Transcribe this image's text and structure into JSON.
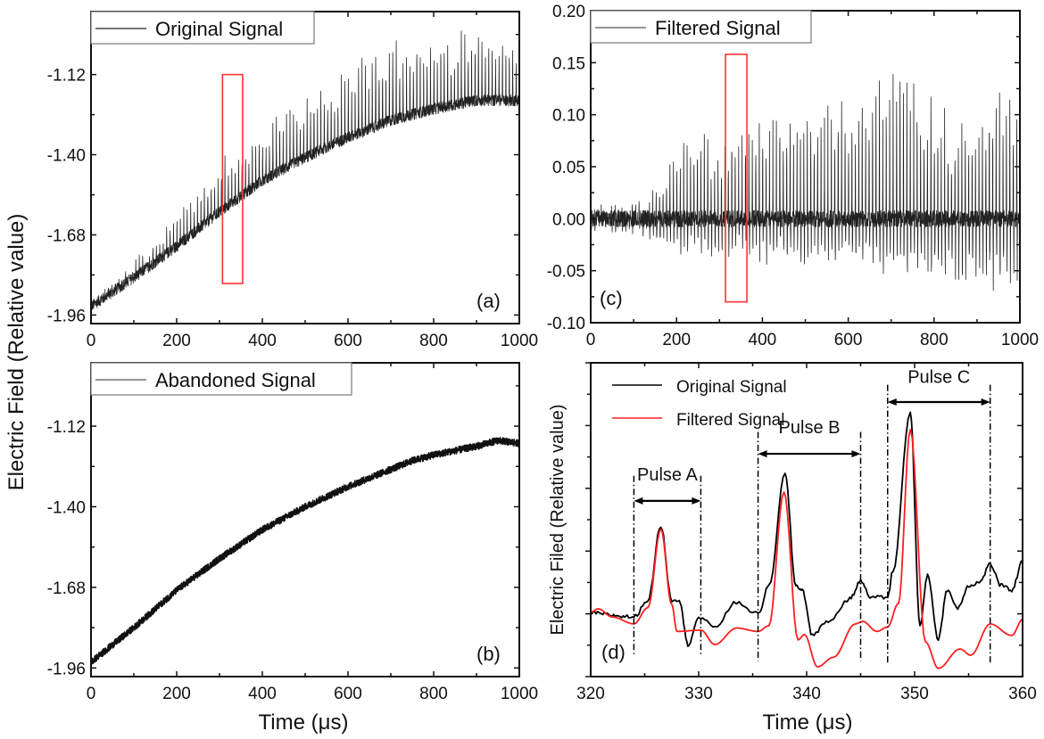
{
  "figure": {
    "shared_ylabel": "Electric Field (Relative value)",
    "bottom_xlabel_left": "Time (μs)",
    "bottom_xlabel_right": "Time (μs)"
  },
  "chart_data": [
    {
      "id": "a",
      "type": "line",
      "panel_tag": "(a)",
      "title": "",
      "xlabel": "",
      "ylabel": "Electric Field (Relative value)",
      "xlim": [
        0,
        1000
      ],
      "ylim": [
        -1.99,
        -0.9
      ],
      "xticks": [
        0,
        200,
        400,
        600,
        800,
        1000
      ],
      "xtick_labels": [
        "0",
        "200",
        "400",
        "600",
        "800",
        "1000"
      ],
      "yticks": [
        -1.96,
        -1.68,
        -1.4,
        -1.12
      ],
      "ytick_labels": [
        "-1.96",
        "-1.68",
        "-1.40",
        "-1.12"
      ],
      "legend": {
        "position": "top-left",
        "boxed": true,
        "entries": [
          {
            "label": "Original Signal",
            "color": "#222222"
          }
        ]
      },
      "series": [
        {
          "name": "Original Signal",
          "color": "#222222",
          "trend": {
            "x": [
              0,
              100,
              200,
              300,
              400,
              500,
              600,
              700,
              800,
              900,
              1000
            ],
            "y": [
              -1.93,
              -1.83,
              -1.72,
              -1.6,
              -1.49,
              -1.41,
              -1.34,
              -1.28,
              -1.24,
              -1.21,
              -1.21
            ]
          },
          "spike_height": {
            "x": [
              0,
              100,
              200,
              300,
              350,
              400,
              600,
              700,
              800,
              900,
              1000
            ],
            "y": [
              0.0,
              0.05,
              0.12,
              0.18,
              0.2,
              0.22,
              0.25,
              0.32,
              0.25,
              0.27,
              0.22
            ]
          },
          "spike_period_us": 8.0,
          "noise": 0.02
        }
      ],
      "annotations": [
        {
          "type": "rect",
          "color": "#ff3333",
          "x": [
            307,
            354
          ],
          "y": [
            -1.85,
            -1.12
          ]
        }
      ]
    },
    {
      "id": "b",
      "type": "line",
      "panel_tag": "(b)",
      "xlabel": "Time (μs)",
      "xlim": [
        0,
        1000
      ],
      "ylim": [
        -1.99,
        -0.9
      ],
      "xticks": [
        0,
        200,
        400,
        600,
        800,
        1000
      ],
      "xtick_labels": [
        "0",
        "200",
        "400",
        "600",
        "800",
        "1000"
      ],
      "yticks": [
        -1.96,
        -1.68,
        -1.4,
        -1.12
      ],
      "ytick_labels": [
        "-1.96",
        "-1.68",
        "-1.40",
        "-1.12"
      ],
      "legend": {
        "position": "top-left",
        "boxed": true,
        "entries": [
          {
            "label": "Abandoned Signal",
            "color": "#555555"
          }
        ]
      },
      "series": [
        {
          "name": "Abandoned Signal",
          "color": "#111111",
          "trend": {
            "x": [
              0,
              100,
              200,
              300,
              400,
              500,
              600,
              700,
              750,
              800,
              900,
              950,
              1000
            ],
            "y": [
              -1.94,
              -1.82,
              -1.69,
              -1.58,
              -1.48,
              -1.4,
              -1.33,
              -1.27,
              -1.24,
              -1.22,
              -1.19,
              -1.17,
              -1.18
            ]
          },
          "noise": 0.012
        }
      ]
    },
    {
      "id": "c",
      "type": "line",
      "panel_tag": "(c)",
      "xlabel": "",
      "xlim": [
        0,
        1000
      ],
      "ylim": [
        -0.1,
        0.2
      ],
      "xticks": [
        0,
        200,
        400,
        600,
        800,
        1000
      ],
      "xtick_labels": [
        "0",
        "200",
        "400",
        "600",
        "800",
        "1000"
      ],
      "yticks": [
        -0.1,
        -0.05,
        0.0,
        0.05,
        0.1,
        0.15,
        0.2
      ],
      "ytick_labels": [
        "-0.10",
        "-0.05",
        "0.00",
        "0.05",
        "0.10",
        "0.15",
        "0.20"
      ],
      "legend": {
        "position": "top-left",
        "boxed": true,
        "entries": [
          {
            "label": "Filtered Signal",
            "color": "#555555"
          }
        ]
      },
      "series": [
        {
          "name": "Filtered Signal",
          "color": "#222222",
          "spike_height": {
            "x": [
              0,
              100,
              150,
              200,
              260,
              300,
              350,
              400,
              500,
              600,
              700,
              720,
              800,
              900,
              950,
              1000
            ],
            "y": [
              0.005,
              0.015,
              0.03,
              0.08,
              0.1,
              0.07,
              0.1,
              0.11,
              0.12,
              0.12,
              0.15,
              0.19,
              0.12,
              0.09,
              0.15,
              0.14
            ]
          },
          "dip_depth": {
            "x": [
              0,
              100,
              200,
              400,
              600,
              800,
              950,
              1000
            ],
            "y": [
              -0.005,
              -0.01,
              -0.03,
              -0.035,
              -0.04,
              -0.05,
              -0.07,
              -0.06
            ]
          },
          "spike_period_us": 8.0,
          "noise": 0.008
        }
      ],
      "annotations": [
        {
          "type": "rect",
          "color": "#ff3333",
          "x": [
            314,
            364
          ],
          "y": [
            -0.08,
            0.158
          ]
        }
      ]
    },
    {
      "id": "d",
      "type": "line",
      "panel_tag": "(d)",
      "xlabel": "Time (μs)",
      "ylabel": "Electric Filed (Relative value)",
      "xlim": [
        320,
        360
      ],
      "ylim": [
        0,
        10
      ],
      "xticks": [
        320,
        330,
        340,
        350,
        360
      ],
      "xtick_labels": [
        "320",
        "330",
        "340",
        "350",
        "360"
      ],
      "yticks_unlabeled": [
        0,
        1,
        2,
        3,
        4,
        5,
        6,
        7,
        8,
        9,
        10
      ],
      "legend": {
        "position": "top-left",
        "boxed": false,
        "entries": [
          {
            "label": "Original Signal",
            "color": "#000000"
          },
          {
            "label": "Filtered Signal",
            "color": "#ff2020"
          }
        ]
      },
      "series": [
        {
          "name": "Original Signal",
          "color": "#000000",
          "x": [
            320,
            321,
            322,
            323,
            324,
            325.3,
            326.5,
            327.5,
            328.2,
            329,
            330,
            331.5,
            333.5,
            335.5,
            336.5,
            338,
            339,
            339.6,
            340.5,
            342,
            344,
            345,
            346,
            347.5,
            348,
            349.6,
            350.5,
            351.2,
            352.2,
            353,
            354,
            355,
            356,
            357,
            358,
            359,
            360
          ],
          "y": [
            2.05,
            2.0,
            1.95,
            1.92,
            1.9,
            2.44,
            4.8,
            2.44,
            2.45,
            1.02,
            1.87,
            1.6,
            2.36,
            2.0,
            2.87,
            6.45,
            2.9,
            2.76,
            1.34,
            1.76,
            2.47,
            3.04,
            2.53,
            2.53,
            3.38,
            8.44,
            1.62,
            3.24,
            1.19,
            2.76,
            2.19,
            2.9,
            3.0,
            3.58,
            2.9,
            2.76,
            3.66
          ]
        },
        {
          "name": "Filtered Signal",
          "color": "#ff2020",
          "x": [
            320,
            320.7,
            322,
            324,
            325.3,
            326.5,
            327.5,
            328,
            330.2,
            331.5,
            333.5,
            335.5,
            336.5,
            337.9,
            339.2,
            339.8,
            341,
            342.5,
            344.5,
            345.2,
            346.5,
            347.5,
            348.5,
            349.6,
            351,
            352.2,
            354.2,
            355.2,
            357,
            359,
            360
          ],
          "y": [
            2.05,
            2.16,
            1.9,
            1.68,
            2.2,
            4.7,
            2.3,
            1.44,
            1.48,
            1.02,
            1.55,
            1.44,
            1.62,
            5.88,
            1.17,
            1.34,
            0.31,
            0.62,
            1.68,
            1.76,
            1.44,
            1.58,
            2.33,
            7.87,
            1.11,
            0.26,
            0.88,
            0.68,
            1.68,
            1.31,
            1.82
          ]
        }
      ],
      "annotations": [
        {
          "type": "pulse-span",
          "label": "Pulse A",
          "x": [
            324.0,
            330.2
          ],
          "line_ylim": [
            0.7,
            6.4
          ],
          "arrow_y": 5.6,
          "label_y": 6.2
        },
        {
          "type": "pulse-span",
          "label": "Pulse B",
          "x": [
            335.5,
            345.0
          ],
          "line_ylim": [
            0.5,
            7.8
          ],
          "arrow_y": 7.1,
          "label_y": 7.7
        },
        {
          "type": "pulse-span",
          "label": "Pulse C",
          "x": [
            347.5,
            357.0
          ],
          "line_ylim": [
            0.4,
            9.3
          ],
          "arrow_y": 8.75,
          "label_y": 9.3
        }
      ]
    }
  ]
}
